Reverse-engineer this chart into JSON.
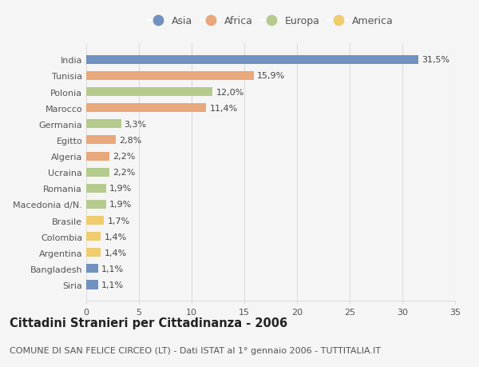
{
  "categories": [
    "India",
    "Tunisia",
    "Polonia",
    "Marocco",
    "Germania",
    "Egitto",
    "Algeria",
    "Ucraina",
    "Romania",
    "Macedonia d/N.",
    "Brasile",
    "Colombia",
    "Argentina",
    "Bangladesh",
    "Siria"
  ],
  "values": [
    31.5,
    15.9,
    12.0,
    11.4,
    3.3,
    2.8,
    2.2,
    2.2,
    1.9,
    1.9,
    1.7,
    1.4,
    1.4,
    1.1,
    1.1
  ],
  "labels": [
    "31,5%",
    "15,9%",
    "12,0%",
    "11,4%",
    "3,3%",
    "2,8%",
    "2,2%",
    "2,2%",
    "1,9%",
    "1,9%",
    "1,7%",
    "1,4%",
    "1,4%",
    "1,1%",
    "1,1%"
  ],
  "continents": [
    "Asia",
    "Africa",
    "Europa",
    "Africa",
    "Europa",
    "Africa",
    "Africa",
    "Europa",
    "Europa",
    "Europa",
    "America",
    "America",
    "America",
    "Asia",
    "Asia"
  ],
  "continent_colors": {
    "Asia": "#7191c0",
    "Africa": "#e8a87c",
    "Europa": "#b5ca8d",
    "America": "#f0cc6e"
  },
  "legend_labels": [
    "Asia",
    "Africa",
    "Europa",
    "America"
  ],
  "xlim": [
    0,
    35
  ],
  "xticks": [
    0,
    5,
    10,
    15,
    20,
    25,
    30,
    35
  ],
  "title": "Cittadini Stranieri per Cittadinanza - 2006",
  "subtitle": "COMUNE DI SAN FELICE CIRCEO (LT) - Dati ISTAT al 1° gennaio 2006 - TUTTITALIA.IT",
  "background_color": "#f5f5f5",
  "plot_bg_color": "#f5f5f5",
  "grid_color": "#dddddd",
  "bar_height": 0.55,
  "title_fontsize": 10.5,
  "subtitle_fontsize": 8,
  "tick_fontsize": 8,
  "label_fontsize": 8,
  "legend_fontsize": 9
}
